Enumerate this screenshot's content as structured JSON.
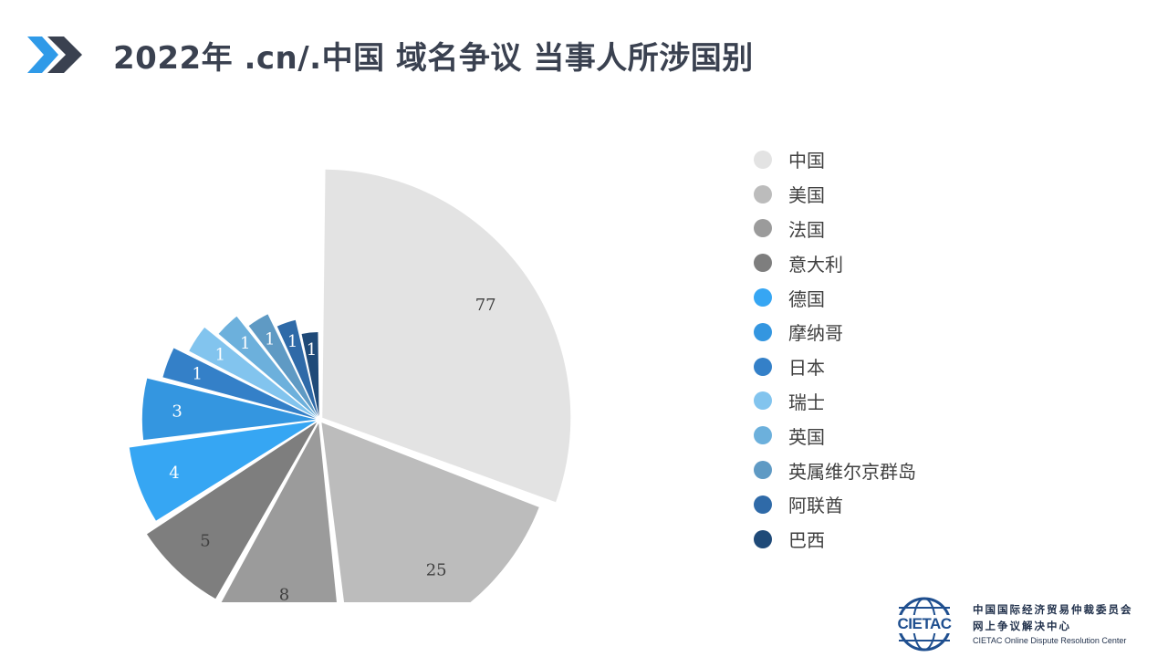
{
  "title": "2022年 .cn/.中国 域名争议 当事人所涉国别",
  "chart_data": {
    "type": "pie",
    "variant": "polar-area",
    "categories": [
      "中国",
      "美国",
      "法国",
      "意大利",
      "德国",
      "摩纳哥",
      "日本",
      "瑞士",
      "英国",
      "英属维尔京群岛",
      "阿联酋",
      "巴西"
    ],
    "values": [
      77,
      25,
      8,
      5,
      4,
      3,
      1,
      1,
      1,
      1,
      1,
      1
    ],
    "colors": [
      "#e3e3e3",
      "#bcbcbc",
      "#9b9b9b",
      "#7e7e7e",
      "#36a6f3",
      "#3496e0",
      "#3480c8",
      "#82c4ee",
      "#6cb0dc",
      "#5f9ac4",
      "#2f6aa8",
      "#1f4a78"
    ],
    "label_colors": [
      "#404040",
      "#404040",
      "#404040",
      "#404040",
      "#ffffff",
      "#ffffff",
      "#ffffff",
      "#ffffff",
      "#ffffff",
      "#ffffff",
      "#ffffff",
      "#ffffff"
    ],
    "legend_position": "right"
  },
  "logo": {
    "wordmark": "CIETAC",
    "name_cn": "中国国际经济贸易仲裁委员会",
    "subname_cn": "网上争议解决中心",
    "name_en": "CIETAC Online Dispute Resolution Center"
  }
}
